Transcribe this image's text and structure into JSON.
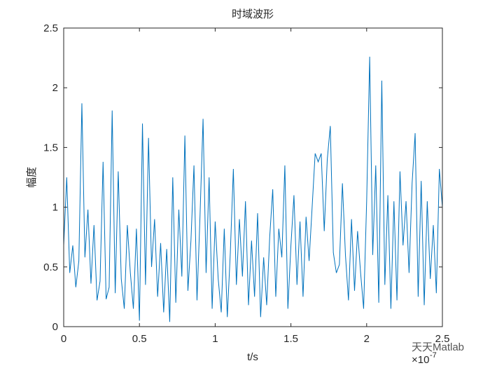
{
  "chart_data": {
    "type": "line",
    "title": "时域波形",
    "x_label": "t/s",
    "y_label": "幅度",
    "x_multiplier": {
      "base": "×10",
      "exponent": "-7"
    },
    "watermark": "天天Matlab",
    "x": [
      0,
      0.02,
      0.04,
      0.06,
      0.08,
      0.1,
      0.12,
      0.14,
      0.16,
      0.18,
      0.2,
      0.22,
      0.24,
      0.26,
      0.28,
      0.3,
      0.32,
      0.34,
      0.36,
      0.38,
      0.4,
      0.42,
      0.44,
      0.46,
      0.48,
      0.5,
      0.52,
      0.54,
      0.56,
      0.58,
      0.6,
      0.62,
      0.64,
      0.66,
      0.68,
      0.7,
      0.72,
      0.74,
      0.76,
      0.78,
      0.8,
      0.82,
      0.84,
      0.86,
      0.88,
      0.9,
      0.92,
      0.94,
      0.96,
      0.98,
      1,
      1.02,
      1.04,
      1.06,
      1.08,
      1.1,
      1.12,
      1.14,
      1.16,
      1.18,
      1.2,
      1.22,
      1.24,
      1.26,
      1.28,
      1.3,
      1.32,
      1.34,
      1.36,
      1.38,
      1.4,
      1.42,
      1.44,
      1.46,
      1.48,
      1.5,
      1.52,
      1.54,
      1.56,
      1.58,
      1.6,
      1.62,
      1.64,
      1.66,
      1.68,
      1.7,
      1.72,
      1.74,
      1.76,
      1.78,
      1.8,
      1.82,
      1.84,
      1.86,
      1.88,
      1.9,
      1.92,
      1.94,
      1.96,
      1.98,
      2,
      2.02,
      2.04,
      2.06,
      2.08,
      2.1,
      2.12,
      2.14,
      2.16,
      2.18,
      2.2,
      2.22,
      2.24,
      2.26,
      2.28,
      2.3,
      2.32,
      2.34,
      2.36,
      2.38,
      2.4,
      2.42,
      2.44,
      2.46,
      2.48,
      2.5
    ],
    "series": [
      {
        "color": "#0072BD",
        "values": [
          0.68,
          1.25,
          0.45,
          0.68,
          0.33,
          0.55,
          1.87,
          0.58,
          0.98,
          0.36,
          0.85,
          0.22,
          0.38,
          1.38,
          0.23,
          0.33,
          1.81,
          0.28,
          1.3,
          0.4,
          0.15,
          0.85,
          0.45,
          0.15,
          0.82,
          0.05,
          1.7,
          0.35,
          1.58,
          0.5,
          0.9,
          0.25,
          0.7,
          0.12,
          0.65,
          0.04,
          1.25,
          0.2,
          0.98,
          0.42,
          1.6,
          0.3,
          0.72,
          1.35,
          0.22,
          0.93,
          1.74,
          0.45,
          1.25,
          0.15,
          0.88,
          0.4,
          0.12,
          0.82,
          0.08,
          0.62,
          1.32,
          0.35,
          0.9,
          0.42,
          1.05,
          0.18,
          0.72,
          0.25,
          0.95,
          0.08,
          0.58,
          0.18,
          0.75,
          1.15,
          0.25,
          0.82,
          0.58,
          1.35,
          0.15,
          0.68,
          1.1,
          0.35,
          0.88,
          0.25,
          0.92,
          0.55,
          1.0,
          1.45,
          1.38,
          1.45,
          0.8,
          1.4,
          1.68,
          0.62,
          0.45,
          0.52,
          1.2,
          0.6,
          0.22,
          0.9,
          0.3,
          0.8,
          0.45,
          0.15,
          1.05,
          2.26,
          0.6,
          1.35,
          0.2,
          2.06,
          0.35,
          1.1,
          0.15,
          1.05,
          0.22,
          1.3,
          0.68,
          1.05,
          0.45,
          1.2,
          1.62,
          0.25,
          1.22,
          0.18,
          1.05,
          0.4,
          0.85,
          0.28,
          1.32,
          1.0
        ]
      }
    ],
    "xlim": [
      0,
      2.5
    ],
    "ylim": [
      0,
      2.5
    ],
    "xticks": [
      0,
      0.5,
      1,
      1.5,
      2,
      2.5
    ],
    "yticks": [
      0,
      0.5,
      1,
      1.5,
      2,
      2.5
    ]
  }
}
